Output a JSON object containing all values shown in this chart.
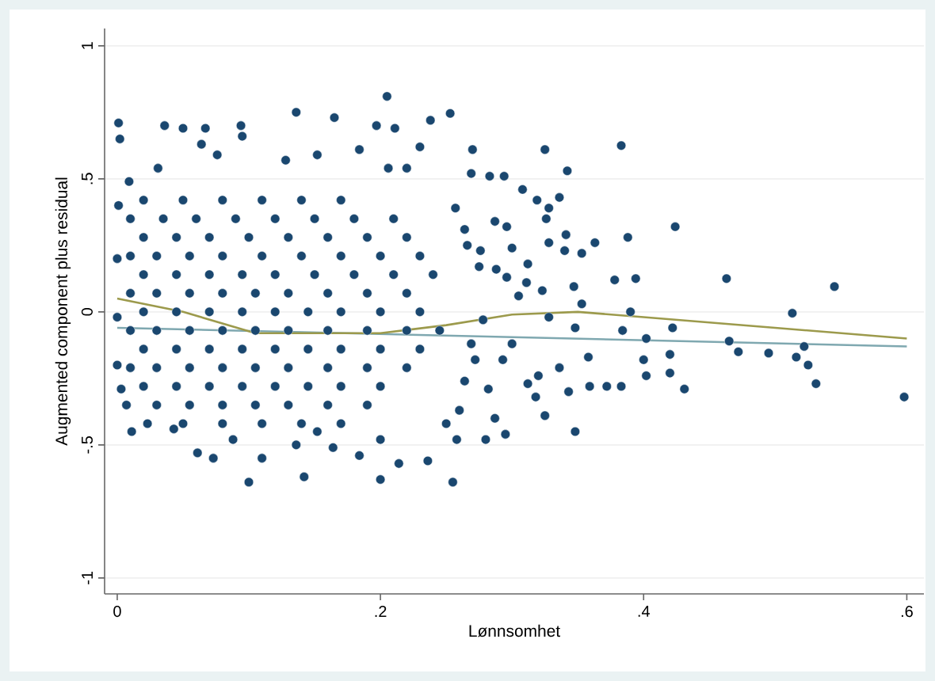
{
  "chart_data": {
    "type": "scatter",
    "xlabel": "Lønnsomhet",
    "ylabel": "Augmented component plus residual",
    "xlim": [
      -0.0096,
      0.613
    ],
    "ylim": [
      -1.06,
      1.065
    ],
    "xticks": [
      0,
      {
        "value": 0.2,
        "label": ".2"
      },
      {
        "value": 0.4,
        "label": ".4"
      },
      {
        "value": 0.6,
        "label": ".6"
      }
    ],
    "yticks": [
      -1,
      {
        "value": -0.5,
        "label": "-.5"
      },
      0,
      {
        "value": 0.5,
        "label": ".5"
      },
      1
    ],
    "grid": "y",
    "series": [
      {
        "marker": "circle",
        "color": "#1a476f",
        "x": [
          0.253,
          0.27,
          0.325,
          0.383,
          0.269,
          0.283,
          0.294,
          0.342,
          0.308,
          0.319,
          0.336,
          0.424,
          0.388,
          0.463,
          0.545,
          0.394,
          0.378,
          0.513,
          0.422,
          0.465,
          0.472,
          0.495,
          0.516,
          0.522,
          0.525,
          0.531,
          0.598,
          0.431,
          0.42,
          0.42,
          0.402,
          0.4,
          0.402,
          0.383,
          0.372,
          0.359,
          0.348,
          0.358,
          0.39,
          0.384,
          0.353,
          0.347,
          0.363,
          0.353,
          0.255,
          0.348,
          0.325,
          0.343,
          0.336,
          0.318,
          0.312,
          0.32,
          0.295,
          0.28,
          0.287,
          0.328,
          0.3,
          0.293,
          0.282,
          0.323,
          0.311,
          0.312,
          0.328,
          0.341,
          0.34,
          0.326,
          0.328,
          0.296,
          0.287,
          0.3,
          0.276,
          0.266,
          0.257,
          0.264,
          0.288,
          0.275,
          0.296,
          0.305,
          0.278,
          0.269,
          0.272,
          0.264,
          0.26,
          0.258,
          0.25,
          0.001,
          0.002,
          0.036,
          0.05,
          0.136,
          0.165,
          0.205,
          0.197,
          0.211,
          0.238,
          0.094,
          0.067,
          0.095,
          0.064,
          0.076,
          0.128,
          0.152,
          0.184,
          0.23,
          0.206,
          0.22,
          0.031,
          0.009,
          0.001,
          0.0,
          0.0,
          0.0,
          0.003,
          0.007,
          0.011,
          0.023,
          0.043,
          0.061,
          0.073,
          0.1,
          0.11,
          0.142,
          0.164,
          0.184,
          0.2,
          0.214,
          0.236,
          0.2,
          0.088,
          0.136,
          0.152,
          0.02,
          0.05,
          0.08,
          0.11,
          0.14,
          0.17,
          0.01,
          0.035,
          0.06,
          0.09,
          0.12,
          0.15,
          0.18,
          0.21,
          0.02,
          0.045,
          0.07,
          0.1,
          0.13,
          0.16,
          0.19,
          0.22,
          0.01,
          0.03,
          0.055,
          0.08,
          0.11,
          0.14,
          0.17,
          0.2,
          0.23,
          0.02,
          0.045,
          0.07,
          0.095,
          0.12,
          0.15,
          0.18,
          0.21,
          0.24,
          0.01,
          0.03,
          0.055,
          0.08,
          0.105,
          0.13,
          0.16,
          0.19,
          0.22,
          0.02,
          0.045,
          0.07,
          0.095,
          0.12,
          0.145,
          0.17,
          0.2,
          0.23,
          0.01,
          0.03,
          0.055,
          0.08,
          0.105,
          0.13,
          0.16,
          0.19,
          0.22,
          0.245,
          0.02,
          0.045,
          0.07,
          0.095,
          0.12,
          0.145,
          0.17,
          0.2,
          0.23,
          0.01,
          0.03,
          0.055,
          0.08,
          0.105,
          0.13,
          0.16,
          0.19,
          0.22,
          0.02,
          0.045,
          0.07,
          0.095,
          0.12,
          0.145,
          0.17,
          0.2,
          0.03,
          0.055,
          0.08,
          0.105,
          0.13,
          0.16,
          0.19,
          0.05,
          0.08,
          0.11,
          0.14,
          0.17
        ],
        "values": [
          0.746,
          0.61,
          0.61,
          0.625,
          0.52,
          0.51,
          0.51,
          0.53,
          0.46,
          0.42,
          0.43,
          0.32,
          0.28,
          0.125,
          0.095,
          0.125,
          0.12,
          -0.005,
          -0.06,
          -0.11,
          -0.15,
          -0.155,
          -0.17,
          -0.13,
          -0.2,
          -0.27,
          -0.32,
          -0.29,
          -0.23,
          -0.16,
          -0.24,
          -0.18,
          -0.1,
          -0.28,
          -0.28,
          -0.28,
          -0.45,
          -0.17,
          0.0,
          -0.07,
          0.03,
          0.095,
          0.26,
          0.22,
          -0.64,
          -0.06,
          -0.39,
          -0.3,
          -0.21,
          -0.32,
          -0.27,
          -0.24,
          -0.46,
          -0.48,
          -0.4,
          -0.02,
          -0.12,
          -0.18,
          -0.29,
          0.08,
          0.11,
          0.18,
          0.26,
          0.29,
          0.23,
          0.35,
          0.39,
          0.32,
          0.34,
          0.24,
          0.23,
          0.25,
          0.39,
          0.31,
          0.16,
          0.17,
          0.13,
          0.06,
          -0.03,
          -0.12,
          -0.18,
          -0.26,
          -0.37,
          -0.48,
          -0.42,
          0.71,
          0.65,
          0.7,
          0.69,
          0.75,
          0.73,
          0.81,
          0.7,
          0.69,
          0.72,
          0.7,
          0.69,
          0.66,
          0.63,
          0.59,
          0.57,
          0.59,
          0.61,
          0.62,
          0.54,
          0.54,
          0.54,
          0.49,
          0.4,
          0.2,
          -0.02,
          -0.2,
          -0.29,
          -0.35,
          -0.45,
          -0.42,
          -0.44,
          -0.53,
          -0.55,
          -0.64,
          -0.55,
          -0.62,
          -0.51,
          -0.54,
          -0.63,
          -0.57,
          -0.56,
          -0.48,
          -0.48,
          -0.5,
          -0.45,
          0.42,
          0.42,
          0.42,
          0.42,
          0.42,
          0.42,
          0.35,
          0.35,
          0.35,
          0.35,
          0.35,
          0.35,
          0.35,
          0.35,
          0.28,
          0.28,
          0.28,
          0.28,
          0.28,
          0.28,
          0.28,
          0.28,
          0.21,
          0.21,
          0.21,
          0.21,
          0.21,
          0.21,
          0.21,
          0.21,
          0.21,
          0.14,
          0.14,
          0.14,
          0.14,
          0.14,
          0.14,
          0.14,
          0.14,
          0.14,
          0.07,
          0.07,
          0.07,
          0.07,
          0.07,
          0.07,
          0.07,
          0.07,
          0.07,
          0.0,
          0.0,
          0.0,
          0.0,
          0.0,
          0.0,
          0.0,
          0.0,
          0.0,
          -0.07,
          -0.07,
          -0.07,
          -0.07,
          -0.07,
          -0.07,
          -0.07,
          -0.07,
          -0.07,
          -0.07,
          -0.14,
          -0.14,
          -0.14,
          -0.14,
          -0.14,
          -0.14,
          -0.14,
          -0.14,
          -0.14,
          -0.21,
          -0.21,
          -0.21,
          -0.21,
          -0.21,
          -0.21,
          -0.21,
          -0.21,
          -0.21,
          -0.28,
          -0.28,
          -0.28,
          -0.28,
          -0.28,
          -0.28,
          -0.28,
          -0.28,
          -0.35,
          -0.35,
          -0.35,
          -0.35,
          -0.35,
          -0.35,
          -0.35,
          -0.42,
          -0.42,
          -0.42,
          -0.42,
          -0.42
        ]
      },
      {
        "type": "line",
        "color": "#7fa8b0",
        "x": [
          0,
          0.6
        ],
        "values": [
          -0.06,
          -0.13
        ]
      },
      {
        "type": "line",
        "color": "#9c9a4c",
        "x": [
          0,
          0.05,
          0.105,
          0.2,
          0.25,
          0.3,
          0.35,
          0.4,
          0.5,
          0.6
        ],
        "values": [
          0.05,
          0.0,
          -0.08,
          -0.08,
          -0.05,
          -0.01,
          0.0,
          -0.02,
          -0.06,
          -0.1
        ]
      }
    ]
  }
}
